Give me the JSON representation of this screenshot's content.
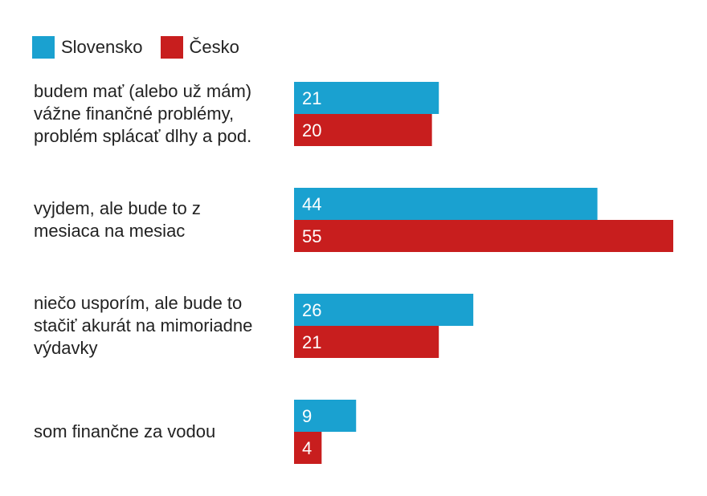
{
  "chart_data": {
    "type": "bar",
    "orientation": "horizontal",
    "categories": [
      [
        "budem mať (alebo už mám)",
        "vážne finančné problémy,",
        "problém splácať dlhy a pod."
      ],
      [
        "vyjdem, ale bude to z",
        "mesiaca na mesiac"
      ],
      [
        "niečo usporím, ale bude to",
        "stačiť akurát na mimoriadne",
        "výdavky"
      ],
      [
        "som finančne za vodou"
      ]
    ],
    "series": [
      {
        "name": "Slovensko",
        "color": "#1aa1d0",
        "values": [
          21,
          44,
          26,
          9
        ]
      },
      {
        "name": "Česko",
        "color": "#c81e1e",
        "values": [
          20,
          55,
          21,
          4
        ]
      }
    ],
    "xlim": [
      0,
      55
    ],
    "grid": false,
    "legend_position": "top-left",
    "data_labels": true
  }
}
